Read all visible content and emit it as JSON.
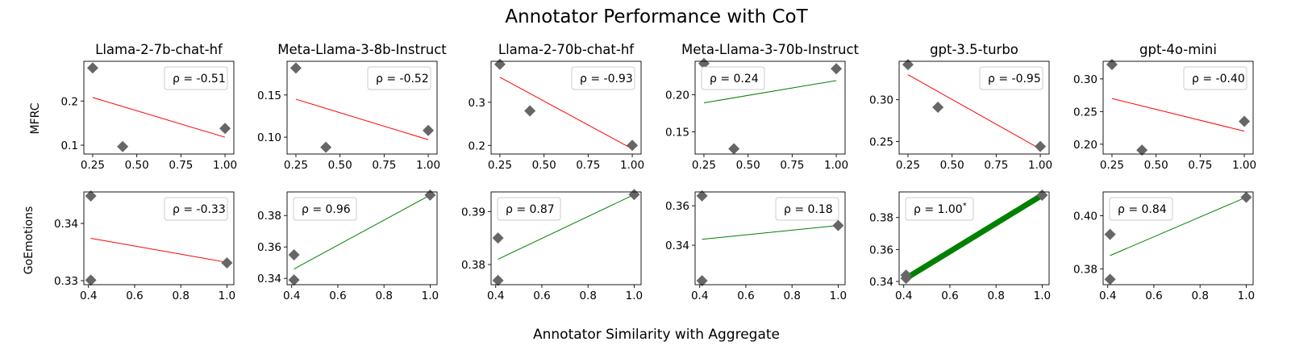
{
  "figure": {
    "title": "Annotator Performance with CoT",
    "xlabel": "Annotator Similarity with Aggregate",
    "row_labels": [
      "MFRC",
      "GoEmotions"
    ],
    "marker_color": "#666666",
    "positive_color": "#008000",
    "negative_color": "#ff0000"
  },
  "chart_data": [
    {
      "type": "scatter",
      "row": 0,
      "col": 0,
      "title": "Llama-2-7b-chat-hf",
      "dataset": "MFRC",
      "annotation": "ρ = -0.51",
      "points": [
        [
          0.25,
          0.275
        ],
        [
          0.42,
          0.097
        ],
        [
          1.0,
          0.138
        ]
      ],
      "fit": [
        [
          0.25,
          0.208
        ],
        [
          1.0,
          0.118
        ]
      ],
      "xlim": [
        0.2,
        1.05
      ],
      "ylim": [
        0.08,
        0.29
      ],
      "xticks": [
        0.25,
        0.5,
        0.75,
        1.0
      ],
      "xtick_labels": [
        "0.25",
        "0.50",
        "0.75",
        "1.00"
      ],
      "yticks": [
        0.1,
        0.2
      ],
      "ytick_labels": [
        "0.1",
        "0.2"
      ],
      "sign": "negative",
      "thick": false
    },
    {
      "type": "scatter",
      "row": 0,
      "col": 1,
      "title": "Meta-Llama-3-8b-Instruct",
      "dataset": "MFRC",
      "annotation": "ρ = -0.52",
      "points": [
        [
          0.25,
          0.182
        ],
        [
          0.42,
          0.088
        ],
        [
          1.0,
          0.108
        ]
      ],
      "fit": [
        [
          0.25,
          0.145
        ],
        [
          1.0,
          0.097
        ]
      ],
      "xlim": [
        0.2,
        1.05
      ],
      "ylim": [
        0.08,
        0.19
      ],
      "xticks": [
        0.25,
        0.5,
        0.75,
        1.0
      ],
      "xtick_labels": [
        "0.25",
        "0.50",
        "0.75",
        "1.00"
      ],
      "yticks": [
        0.1,
        0.15
      ],
      "ytick_labels": [
        "0.10",
        "0.15"
      ],
      "sign": "negative",
      "thick": false
    },
    {
      "type": "scatter",
      "row": 0,
      "col": 2,
      "title": "Llama-2-70b-chat-hf",
      "dataset": "MFRC",
      "annotation": "ρ = -0.93",
      "points": [
        [
          0.25,
          0.388
        ],
        [
          0.42,
          0.28
        ],
        [
          1.0,
          0.2
        ]
      ],
      "fit": [
        [
          0.25,
          0.358
        ],
        [
          1.0,
          0.192
        ]
      ],
      "xlim": [
        0.2,
        1.05
      ],
      "ylim": [
        0.18,
        0.395
      ],
      "xticks": [
        0.25,
        0.5,
        0.75,
        1.0
      ],
      "xtick_labels": [
        "0.25",
        "0.50",
        "0.75",
        "1.00"
      ],
      "yticks": [
        0.2,
        0.3
      ],
      "ytick_labels": [
        "0.2",
        "0.3"
      ],
      "sign": "negative",
      "thick": false
    },
    {
      "type": "scatter",
      "row": 0,
      "col": 3,
      "title": "Meta-Llama-3-70b-Instruct",
      "dataset": "MFRC",
      "annotation": "ρ = 0.24",
      "points": [
        [
          0.25,
          0.242
        ],
        [
          0.42,
          0.127
        ],
        [
          1.0,
          0.235
        ]
      ],
      "fit": [
        [
          0.25,
          0.189
        ],
        [
          1.0,
          0.219
        ]
      ],
      "xlim": [
        0.2,
        1.05
      ],
      "ylim": [
        0.12,
        0.245
      ],
      "xticks": [
        0.25,
        0.5,
        0.75,
        1.0
      ],
      "xtick_labels": [
        "0.25",
        "0.50",
        "0.75",
        "1.00"
      ],
      "yticks": [
        0.15,
        0.2
      ],
      "ytick_labels": [
        "0.15",
        "0.20"
      ],
      "sign": "positive",
      "thick": false
    },
    {
      "type": "scatter",
      "row": 0,
      "col": 4,
      "title": "gpt-3.5-turbo",
      "dataset": "MFRC",
      "annotation": "ρ = -0.95",
      "points": [
        [
          0.25,
          0.342
        ],
        [
          0.42,
          0.291
        ],
        [
          1.0,
          0.244
        ]
      ],
      "fit": [
        [
          0.25,
          0.33
        ],
        [
          1.0,
          0.241
        ]
      ],
      "xlim": [
        0.2,
        1.05
      ],
      "ylim": [
        0.235,
        0.346
      ],
      "xticks": [
        0.25,
        0.5,
        0.75,
        1.0
      ],
      "xtick_labels": [
        "0.25",
        "0.50",
        "0.75",
        "1.00"
      ],
      "yticks": [
        0.25,
        0.3
      ],
      "ytick_labels": [
        "0.25",
        "0.30"
      ],
      "sign": "negative",
      "thick": false
    },
    {
      "type": "scatter",
      "row": 0,
      "col": 5,
      "title": "gpt-4o-mini",
      "dataset": "MFRC",
      "annotation": "ρ = -0.40",
      "points": [
        [
          0.25,
          0.322
        ],
        [
          0.42,
          0.191
        ],
        [
          1.0,
          0.235
        ]
      ],
      "fit": [
        [
          0.25,
          0.27
        ],
        [
          1.0,
          0.22
        ]
      ],
      "xlim": [
        0.2,
        1.05
      ],
      "ylim": [
        0.185,
        0.327
      ],
      "xticks": [
        0.25,
        0.5,
        0.75,
        1.0
      ],
      "xtick_labels": [
        "0.25",
        "0.50",
        "0.75",
        "1.00"
      ],
      "yticks": [
        0.2,
        0.25,
        0.3
      ],
      "ytick_labels": [
        "0.20",
        "0.25",
        "0.30"
      ],
      "sign": "negative",
      "thick": false
    },
    {
      "type": "scatter",
      "row": 1,
      "col": 0,
      "title": "",
      "dataset": "GoEmotions",
      "annotation": "ρ = -0.33",
      "points": [
        [
          0.41,
          0.3448
        ],
        [
          0.41,
          0.3301
        ],
        [
          1.0,
          0.3331
        ]
      ],
      "fit": [
        [
          0.41,
          0.3374
        ],
        [
          1.0,
          0.3332
        ]
      ],
      "xlim": [
        0.38,
        1.03
      ],
      "ylim": [
        0.3293,
        0.3455
      ],
      "xticks": [
        0.4,
        0.6,
        0.8,
        1.0
      ],
      "xtick_labels": [
        "0.4",
        "0.6",
        "0.8",
        "1.0"
      ],
      "yticks": [
        0.33,
        0.34
      ],
      "ytick_labels": [
        "0.33",
        "0.34"
      ],
      "sign": "negative",
      "thick": false
    },
    {
      "type": "scatter",
      "row": 1,
      "col": 1,
      "title": "",
      "dataset": "GoEmotions",
      "annotation": "ρ = 0.96",
      "points": [
        [
          0.41,
          0.355
        ],
        [
          0.41,
          0.339
        ],
        [
          1.0,
          0.393
        ]
      ],
      "fit": [
        [
          0.41,
          0.346
        ],
        [
          1.0,
          0.393
        ]
      ],
      "xlim": [
        0.38,
        1.03
      ],
      "ylim": [
        0.336,
        0.395
      ],
      "xticks": [
        0.4,
        0.6,
        0.8,
        1.0
      ],
      "xtick_labels": [
        "0.4",
        "0.6",
        "0.8",
        "1.0"
      ],
      "yticks": [
        0.34,
        0.36,
        0.38
      ],
      "ytick_labels": [
        "0.34",
        "0.36",
        "0.38"
      ],
      "sign": "positive",
      "thick": false
    },
    {
      "type": "scatter",
      "row": 1,
      "col": 2,
      "title": "",
      "dataset": "GoEmotions",
      "annotation": "ρ = 0.87",
      "points": [
        [
          0.41,
          0.385
        ],
        [
          0.41,
          0.377
        ],
        [
          1.0,
          0.3932
        ]
      ],
      "fit": [
        [
          0.41,
          0.381
        ],
        [
          1.0,
          0.3932
        ]
      ],
      "xlim": [
        0.38,
        1.03
      ],
      "ylim": [
        0.3762,
        0.3937
      ],
      "xticks": [
        0.4,
        0.6,
        0.8,
        1.0
      ],
      "xtick_labels": [
        "0.4",
        "0.6",
        "0.8",
        "1.0"
      ],
      "yticks": [
        0.38,
        0.39
      ],
      "ytick_labels": [
        "0.38",
        "0.39"
      ],
      "sign": "positive",
      "thick": false
    },
    {
      "type": "scatter",
      "row": 1,
      "col": 3,
      "title": "",
      "dataset": "GoEmotions",
      "annotation": "ρ = 0.18",
      "points": [
        [
          0.41,
          0.365
        ],
        [
          0.41,
          0.322
        ],
        [
          1.0,
          0.35
        ]
      ],
      "fit": [
        [
          0.41,
          0.343
        ],
        [
          1.0,
          0.35
        ]
      ],
      "xlim": [
        0.38,
        1.03
      ],
      "ylim": [
        0.32,
        0.367
      ],
      "xticks": [
        0.4,
        0.6,
        0.8,
        1.0
      ],
      "xtick_labels": [
        "0.4",
        "0.6",
        "0.8",
        "1.0"
      ],
      "yticks": [
        0.34,
        0.36
      ],
      "ytick_labels": [
        "0.34",
        "0.36"
      ],
      "sign": "positive",
      "thick": false
    },
    {
      "type": "scatter",
      "row": 1,
      "col": 4,
      "title": "",
      "dataset": "GoEmotions",
      "annotation": "ρ = 1.00*",
      "points": [
        [
          0.41,
          0.344
        ],
        [
          0.41,
          0.342
        ],
        [
          1.0,
          0.394
        ]
      ],
      "fit": [
        [
          0.41,
          0.342
        ],
        [
          1.0,
          0.394
        ]
      ],
      "xlim": [
        0.38,
        1.03
      ],
      "ylim": [
        0.338,
        0.396
      ],
      "xticks": [
        0.4,
        0.6,
        0.8,
        1.0
      ],
      "xtick_labels": [
        "0.4",
        "0.6",
        "0.8",
        "1.0"
      ],
      "yticks": [
        0.34,
        0.36,
        0.38
      ],
      "ytick_labels": [
        "0.34",
        "0.36",
        "0.38"
      ],
      "sign": "positive",
      "thick": true
    },
    {
      "type": "scatter",
      "row": 1,
      "col": 5,
      "title": "",
      "dataset": "GoEmotions",
      "annotation": "ρ = 0.84",
      "points": [
        [
          0.41,
          0.393
        ],
        [
          0.41,
          0.376
        ],
        [
          1.0,
          0.407
        ]
      ],
      "fit": [
        [
          0.41,
          0.385
        ],
        [
          1.0,
          0.407
        ]
      ],
      "xlim": [
        0.38,
        1.03
      ],
      "ylim": [
        0.374,
        0.409
      ],
      "xticks": [
        0.4,
        0.6,
        0.8,
        1.0
      ],
      "xtick_labels": [
        "0.4",
        "0.6",
        "0.8",
        "1.0"
      ],
      "yticks": [
        0.38,
        0.4
      ],
      "ytick_labels": [
        "0.38",
        "0.40"
      ],
      "sign": "positive",
      "thick": false
    }
  ]
}
